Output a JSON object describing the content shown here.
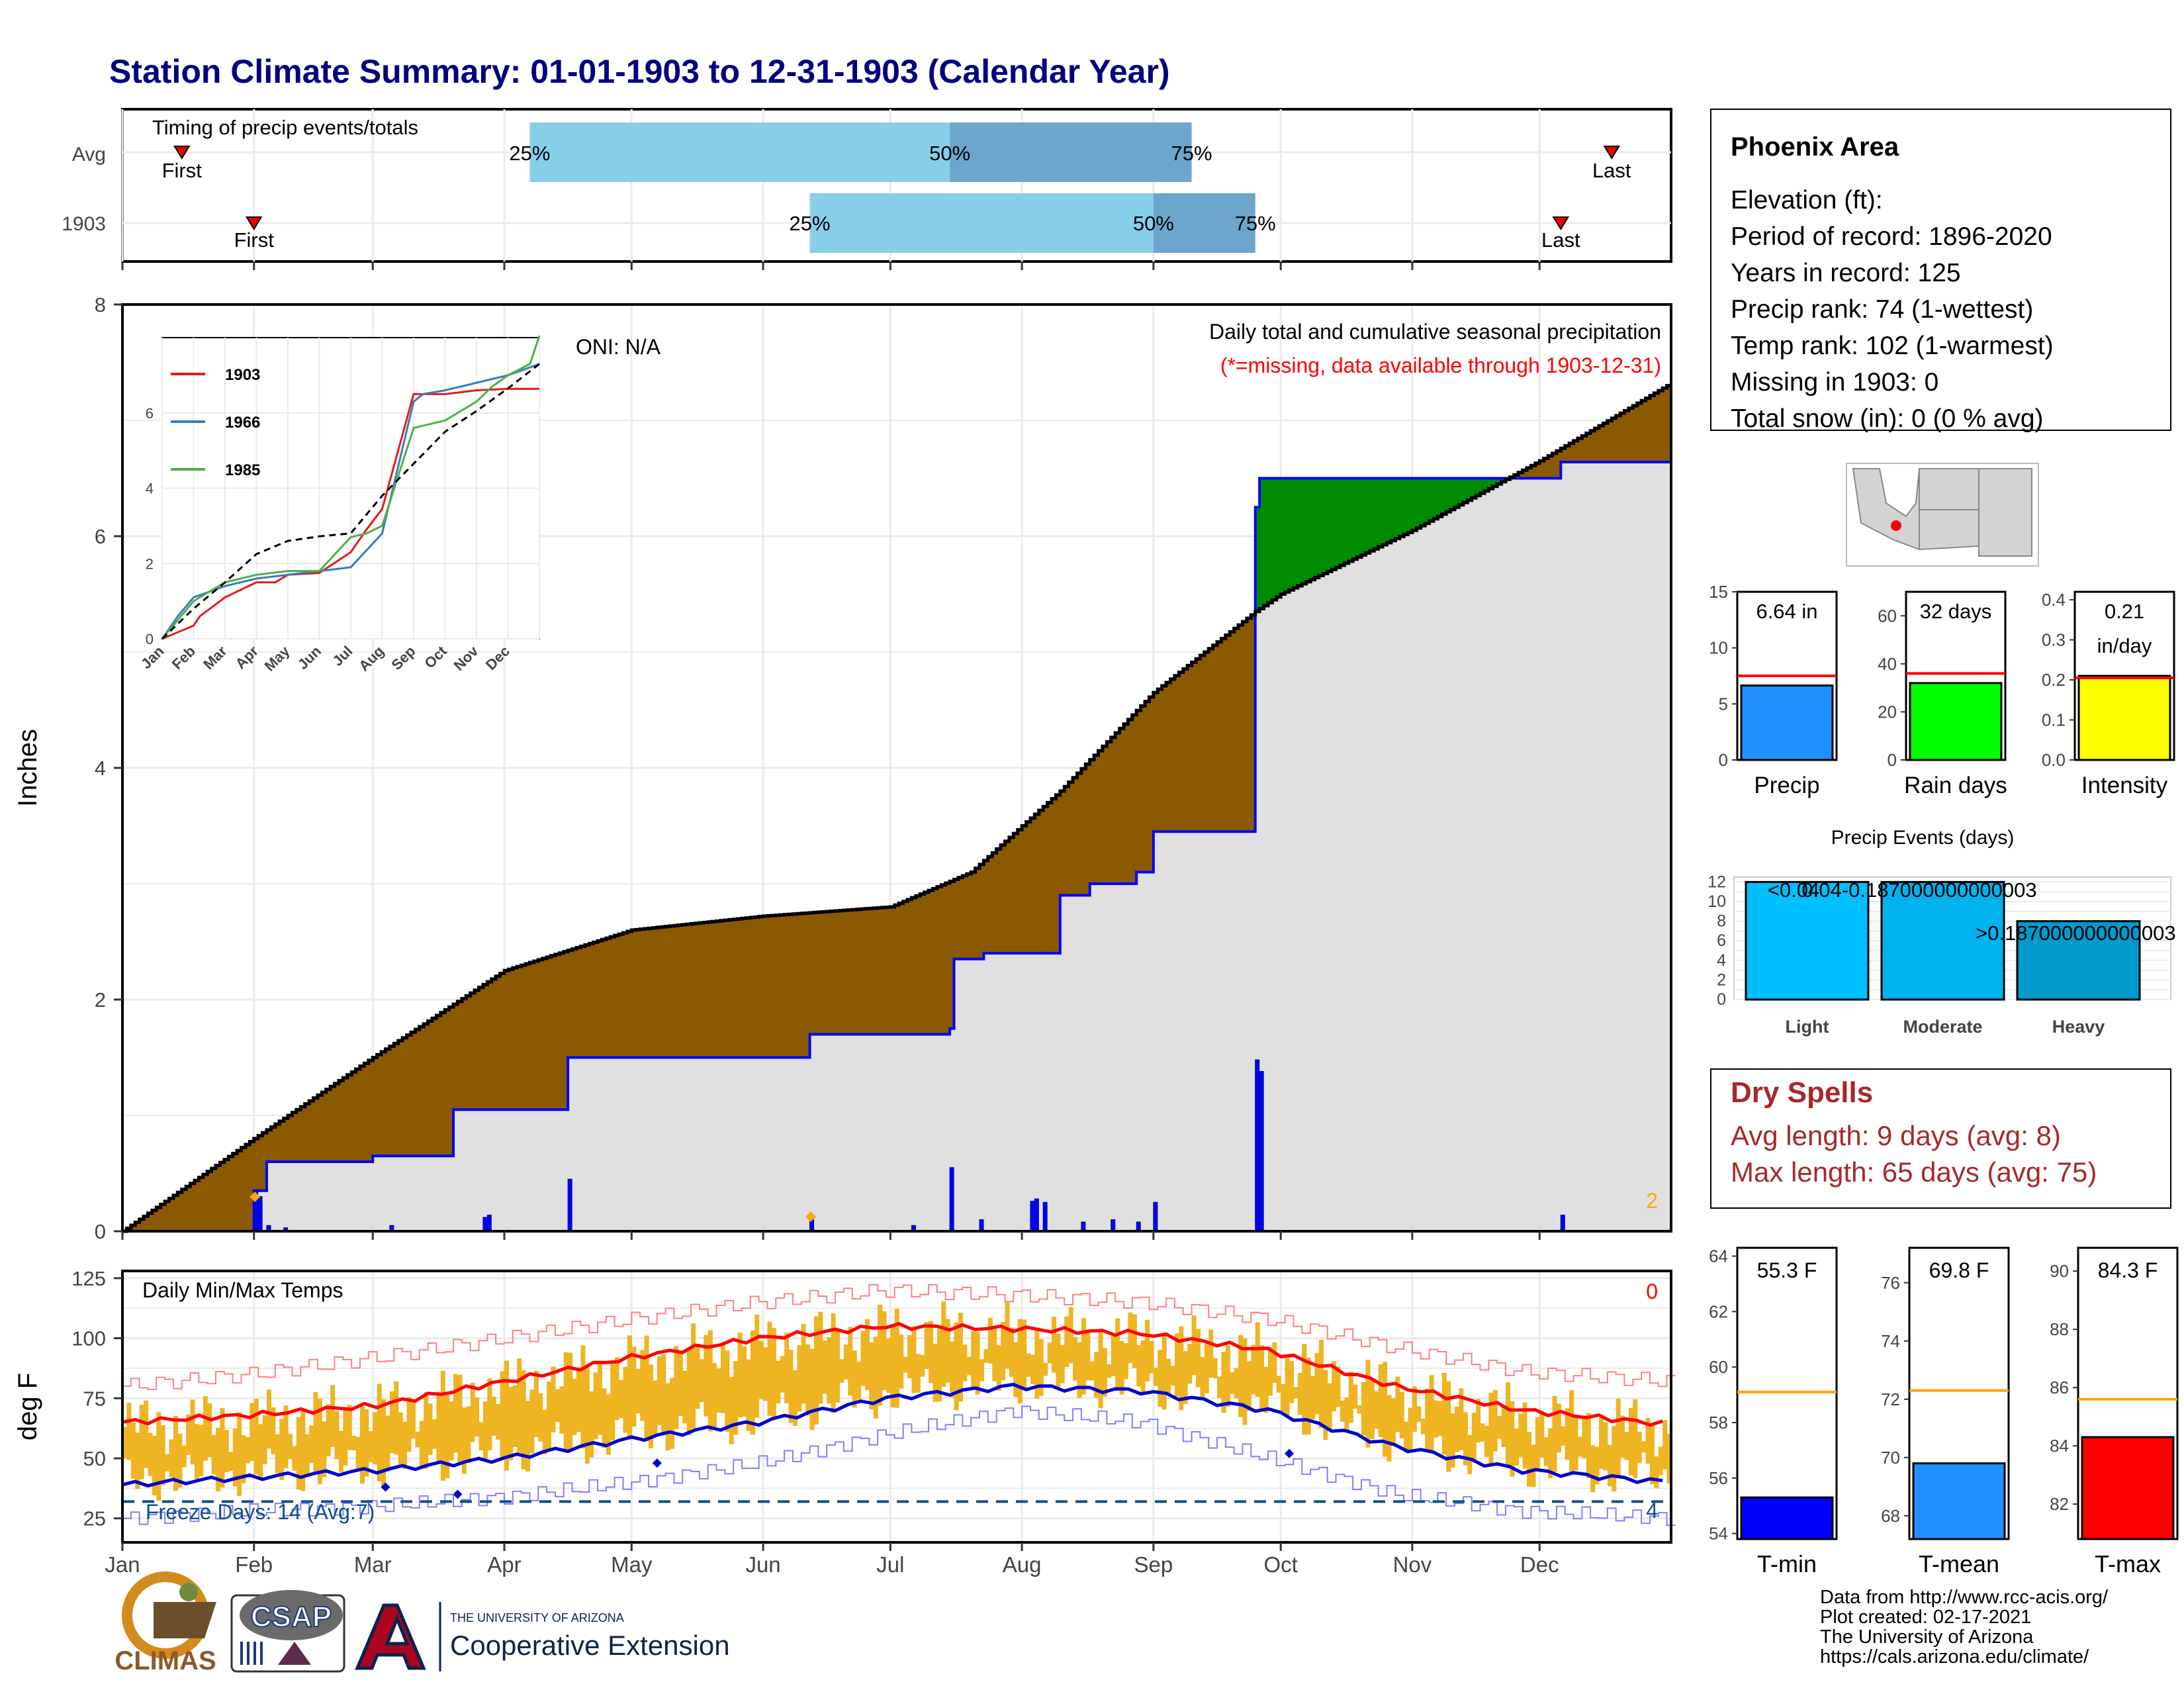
{
  "page_title": "Station Climate Summary: 01-01-1903 to 12-31-1903 (Calendar Year)",
  "months": [
    "Jan",
    "Feb",
    "Mar",
    "Apr",
    "May",
    "Jun",
    "Jul",
    "Aug",
    "Sep",
    "Oct",
    "Nov",
    "Dec"
  ],
  "timing": {
    "title": "Timing of precip events/totals",
    "rows": [
      {
        "label": "Avg",
        "first": "First",
        "last": "Last",
        "p25": "25%",
        "p50": "50%",
        "p75": "75%"
      },
      {
        "label": "1903",
        "first": "First",
        "last": "Last",
        "p25": "25%",
        "p50": "50%",
        "p75": "75%"
      }
    ]
  },
  "station": {
    "name": "Phoenix Area",
    "lines": [
      "Elevation (ft):",
      "Period of record: 1896-2020",
      "Years in record: 125",
      "Precip rank: 74 (1-wettest)",
      "Temp rank: 102 (1-warmest)",
      "Missing in 1903: 0",
      "Total snow (in): 0 (0 % avg)"
    ]
  },
  "precip_panel": {
    "title": "Daily total and cumulative seasonal precipitation",
    "note": "(*=missing, data available through 1903-12-31)",
    "oni": "ONI: N/A",
    "ylabel": "Inches",
    "corner": "2"
  },
  "inset": {
    "series": [
      "1903",
      "1966",
      "1985"
    ]
  },
  "temp_panel": {
    "title": "Daily Min/Max Temps",
    "ylabel": "deg F",
    "freeze": "Freeze Days: 14 (Avg:7)",
    "corner_top": "0",
    "corner_bottom": "4"
  },
  "summary_bars": [
    {
      "label": "Precip",
      "value_text": "6.64 in"
    },
    {
      "label": "Rain days",
      "value_text": "32 days"
    },
    {
      "label": "Intensity",
      "value_text": "0.21",
      "value_text2": "in/day"
    }
  ],
  "events": {
    "title": "Precip Events (days)",
    "bar_labels": [
      "<0.04",
      "0.04-0.187000000000003",
      ">0.187000000000003"
    ]
  },
  "dry_spells": {
    "title": "Dry Spells",
    "avg": "Avg length: 9 days (avg: 8)",
    "max": "Max length: 65 days (avg: 75)"
  },
  "temp_bars": [
    {
      "label": "T-min",
      "value_text": "55.3 F"
    },
    {
      "label": "T-mean",
      "value_text": "69.8 F"
    },
    {
      "label": "T-max",
      "value_text": "84.3 F"
    }
  ],
  "credits": [
    "Data from http://www.rcc-acis.org/",
    "Plot created: 02-17-2021",
    "The University of Arizona",
    "https://cals.arizona.edu/climate/"
  ],
  "logos": {
    "climas": "CLIMAS",
    "csap": "CSAP",
    "ua_small": "THE UNIVERSITY OF ARIZONA",
    "ua_big": "Cooperative Extension"
  },
  "colors": {
    "title": "#000080",
    "brown": "#8B5A00",
    "green": "#008B00",
    "grey_fill": "#E0E0E0",
    "blue": "#0000FF",
    "gold": "#EEB422",
    "red": "#FF0000",
    "light_blue": "#87CEEB",
    "steel": "#6CA6CD"
  },
  "chart_data": [
    {
      "type": "bar",
      "name": "timing",
      "categories": [
        "Avg",
        "1903"
      ],
      "avg": {
        "first": "Jan 15",
        "p25": "Apr 7",
        "p50": "Jul 15",
        "p75": "Sep 10",
        "last": "Dec 18"
      },
      "y1903": {
        "first": "Feb 1",
        "p25": "Jun 12",
        "p50": "Sep 1",
        "p75": "Sep 25",
        "last": "Dec 6"
      }
    },
    {
      "type": "area",
      "name": "precipitation",
      "ylim": [
        0,
        8
      ],
      "yticks": [
        0,
        2,
        4,
        6,
        8
      ],
      "avg_cumulative": {
        "x": [
          "Jan 1",
          "Feb 1",
          "Mar 1",
          "Apr 1",
          "May 1",
          "Jun 1",
          "Jul 1",
          "Jul 20",
          "Aug 10",
          "Sep 1",
          "Sep 25",
          "Oct 1",
          "Nov 1",
          "Dec 1",
          "Dec 31"
        ],
        "y": [
          0,
          0.8,
          1.5,
          2.25,
          2.6,
          2.72,
          2.8,
          3.1,
          3.8,
          4.65,
          5.35,
          5.5,
          6.05,
          6.65,
          7.3
        ]
      },
      "cumulative_1903": {
        "x": [
          "Jan 1",
          "Feb 1",
          "Feb 4",
          "Mar 1",
          "Mar 20",
          "Apr 16",
          "Jun 12",
          "Jul 15",
          "Jul 16",
          "Jul 23",
          "Aug 10",
          "Aug 17",
          "Aug 28",
          "Sep 1",
          "Sep 24",
          "Sep 25",
          "Sep 26",
          "Dec 6",
          "Dec 31"
        ],
        "y": [
          0,
          0.35,
          0.6,
          0.65,
          1.05,
          1.5,
          1.7,
          1.75,
          2.35,
          2.4,
          2.9,
          3.0,
          3.1,
          3.45,
          3.45,
          6.25,
          6.5,
          6.64,
          6.64
        ]
      },
      "daily_1903": {
        "x": [
          "Feb 1",
          "Feb 2",
          "Feb 4",
          "Feb 8",
          "Mar 5",
          "Mar 27",
          "Mar 28",
          "Apr 16",
          "Jun 12",
          "Jul 6",
          "Jul 15",
          "Jul 22",
          "Aug 3",
          "Aug 4",
          "Aug 6",
          "Aug 15",
          "Aug 22",
          "Aug 28",
          "Sep 1",
          "Sep 25",
          "Sep 26",
          "Dec 6"
        ],
        "y": [
          0.35,
          0.3,
          0.05,
          0.03,
          0.05,
          0.12,
          0.14,
          0.45,
          0.1,
          0.05,
          0.55,
          0.1,
          0.26,
          0.28,
          0.25,
          0.08,
          0.1,
          0.08,
          0.25,
          1.48,
          1.38,
          0.14
        ]
      }
    },
    {
      "type": "bar",
      "name": "inset_cumulative",
      "ylim": [
        0,
        8
      ],
      "yticks": [
        0,
        2,
        4,
        6
      ],
      "series": [
        {
          "name": "1903",
          "x": [
            0,
            1,
            1.2,
            2,
            3,
            3.6,
            4,
            5,
            6,
            6.5,
            7,
            8,
            9,
            10,
            11,
            12
          ],
          "y": [
            0,
            0.35,
            0.6,
            1.1,
            1.5,
            1.5,
            1.7,
            1.75,
            2.3,
            2.9,
            3.45,
            6.5,
            6.5,
            6.6,
            6.64,
            6.64
          ]
        },
        {
          "name": "1966",
          "x": [
            0,
            0.5,
            1,
            2,
            3,
            4,
            5,
            6,
            7,
            8,
            8.3,
            9,
            10,
            11,
            12
          ],
          "y": [
            0,
            0.6,
            1.1,
            1.4,
            1.6,
            1.7,
            1.8,
            1.9,
            2.8,
            6.3,
            6.5,
            6.6,
            6.8,
            7.0,
            7.3
          ]
        },
        {
          "name": "1985",
          "x": [
            0,
            0.5,
            1,
            2,
            3,
            4,
            5,
            6,
            6.5,
            7,
            8,
            9,
            10,
            10.5,
            11,
            11.7,
            12
          ],
          "y": [
            0,
            0.5,
            1,
            1.5,
            1.7,
            1.8,
            1.8,
            2.7,
            2.8,
            3.0,
            5.6,
            5.8,
            6.3,
            6.7,
            7.0,
            7.3,
            8.2
          ]
        },
        {
          "name": "Average",
          "x": [
            0,
            1,
            2,
            3,
            4,
            5,
            6,
            7,
            8,
            9,
            10,
            11,
            12
          ],
          "y": [
            0,
            0.8,
            1.5,
            2.25,
            2.6,
            2.72,
            2.8,
            3.8,
            4.65,
            5.5,
            6.05,
            6.65,
            7.3
          ]
        }
      ]
    },
    {
      "type": "bar",
      "name": "summary_precip",
      "values": [
        6.64
      ],
      "avg": 7.5,
      "ylim": [
        0,
        15
      ],
      "yticks": [
        0,
        5,
        10,
        15
      ]
    },
    {
      "type": "bar",
      "name": "summary_raindays",
      "values": [
        32
      ],
      "avg": 36,
      "ylim": [
        0,
        70
      ],
      "yticks": [
        0,
        20,
        40,
        60
      ]
    },
    {
      "type": "bar",
      "name": "summary_intensity",
      "values": [
        0.21
      ],
      "avg": 0.205,
      "ylim": [
        0,
        0.42
      ],
      "yticks": [
        0,
        0.1,
        0.2,
        0.3,
        0.4
      ]
    },
    {
      "type": "bar",
      "name": "precip_events",
      "categories": [
        "Light",
        "Moderate",
        "Heavy"
      ],
      "values": [
        12,
        12,
        8
      ],
      "ylim": [
        0,
        12.5
      ],
      "yticks": [
        0,
        2,
        4,
        6,
        8,
        10,
        12
      ]
    },
    {
      "type": "line",
      "name": "daily_temps",
      "ylim": [
        15,
        128
      ],
      "yticks": [
        25,
        50,
        75,
        100,
        125
      ],
      "normal_max": {
        "x": [
          0,
          30,
          60,
          90,
          120,
          150,
          180,
          210,
          240,
          270,
          300,
          330,
          365
        ],
        "y": [
          65,
          68,
          72,
          82,
          92,
          100,
          105,
          104,
          102,
          95,
          80,
          70,
          64
        ]
      },
      "normal_min": {
        "x": [
          0,
          30,
          60,
          90,
          120,
          150,
          180,
          210,
          240,
          270,
          300,
          330,
          365
        ],
        "y": [
          39,
          42,
          45,
          50,
          58,
          65,
          75,
          80,
          78,
          70,
          55,
          45,
          40
        ]
      },
      "record_max": {
        "x": [
          0,
          30,
          60,
          90,
          120,
          150,
          180,
          210,
          240,
          270,
          300,
          330,
          365
        ],
        "y": [
          80,
          85,
          92,
          100,
          108,
          115,
          120,
          118,
          115,
          108,
          96,
          86,
          82
        ]
      },
      "record_min": {
        "x": [
          0,
          30,
          60,
          90,
          120,
          150,
          180,
          210,
          240,
          270,
          300,
          330,
          365
        ],
        "y": [
          25,
          28,
          30,
          34,
          40,
          48,
          60,
          70,
          65,
          50,
          35,
          28,
          25
        ]
      },
      "freeze_line": 32
    },
    {
      "type": "bar",
      "name": "temp_summary",
      "categories": [
        "T-min",
        "T-mean",
        "T-max"
      ],
      "values": [
        55.3,
        69.8,
        84.3
      ],
      "avg": [
        59.1,
        72.3,
        85.6
      ],
      "ylims": [
        [
          53.8,
          64.3
        ],
        [
          67.2,
          77.2
        ],
        [
          80.8,
          90.8
        ]
      ]
    }
  ]
}
